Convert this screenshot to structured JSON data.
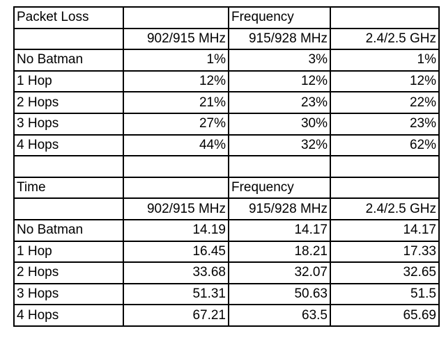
{
  "packet_loss": {
    "title": "Packet Loss",
    "group_label": "Frequency",
    "columns": [
      "902/915 MHz",
      "915/928 MHz",
      "2.4/2.5 GHz"
    ],
    "rows": [
      {
        "label": "No Batman",
        "values": [
          "1%",
          "3%",
          "1%"
        ]
      },
      {
        "label": "1 Hop",
        "values": [
          "12%",
          "12%",
          "12%"
        ]
      },
      {
        "label": "2 Hops",
        "values": [
          "21%",
          "23%",
          "22%"
        ]
      },
      {
        "label": "3 Hops",
        "values": [
          "27%",
          "30%",
          "23%"
        ]
      },
      {
        "label": "4 Hops",
        "values": [
          "44%",
          "32%",
          "62%"
        ]
      }
    ]
  },
  "time": {
    "title": "Time",
    "group_label": "Frequency",
    "columns": [
      "902/915 MHz",
      "915/928 MHz",
      "2.4/2.5 GHz"
    ],
    "rows": [
      {
        "label": "No Batman",
        "values": [
          "14.19",
          "14.17",
          "14.17"
        ]
      },
      {
        "label": "1 Hop",
        "values": [
          "16.45",
          "18.21",
          "17.33"
        ]
      },
      {
        "label": "2 Hops",
        "values": [
          "33.68",
          "32.07",
          "32.65"
        ]
      },
      {
        "label": "3 Hops",
        "values": [
          "51.31",
          "50.63",
          "51.5"
        ]
      },
      {
        "label": "4 Hops",
        "values": [
          "67.21",
          "63.5",
          "65.69"
        ]
      }
    ]
  }
}
